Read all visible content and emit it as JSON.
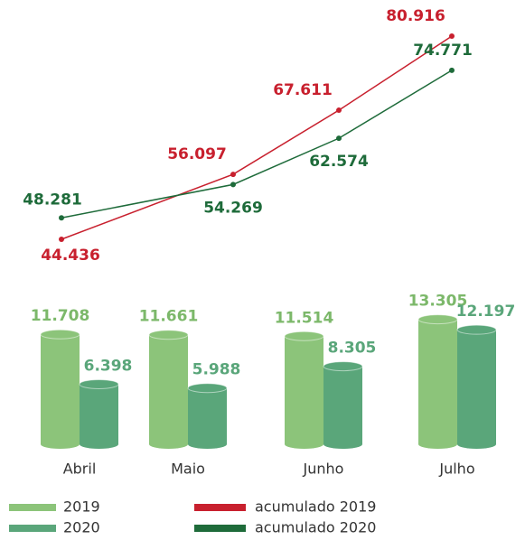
{
  "chart_data": [
    {
      "type": "line",
      "series": [
        {
          "name": "acumulado 2019",
          "color": "#c8202e",
          "values": [
            44436,
            56097,
            67611,
            80916
          ],
          "value_labels": [
            "44.436",
            "56.097",
            "67.611",
            "80.916"
          ]
        },
        {
          "name": "acumulado 2020",
          "color": "#1e6b3a",
          "values": [
            48281,
            54269,
            62574,
            74771
          ],
          "value_labels": [
            "48.281",
            "54.269",
            "62.574",
            "74.771"
          ]
        }
      ]
    },
    {
      "type": "bar",
      "categories": [
        "Abril",
        "Maio",
        "Junho",
        "Julho"
      ],
      "series": [
        {
          "name": "2019",
          "color": "#8cc47a",
          "values": [
            11708,
            11661,
            11514,
            13305
          ],
          "value_labels": [
            "11.708",
            "11.661",
            "11.514",
            "13.305"
          ]
        },
        {
          "name": "2020",
          "color": "#5aa67a",
          "values": [
            6398,
            5988,
            8305,
            12197
          ],
          "value_labels": [
            "6.398",
            "5.988",
            "8.305",
            "12.197"
          ]
        }
      ]
    }
  ]
}
